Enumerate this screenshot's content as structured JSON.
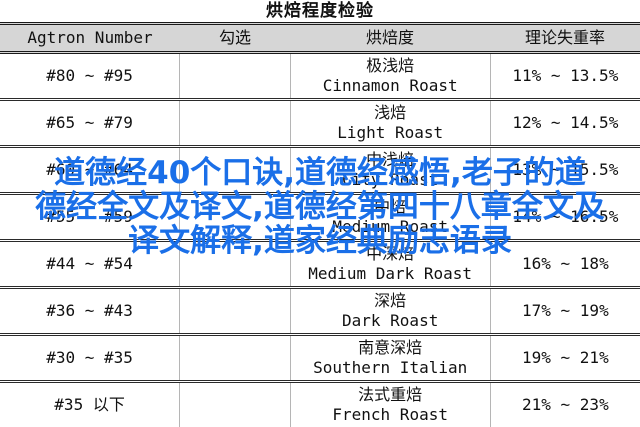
{
  "page": {
    "title": "烘焙程度检验"
  },
  "table": {
    "columns": [
      "Agtron Number",
      "勾选",
      "烘焙度",
      "理论失重率"
    ],
    "rows": [
      {
        "agtron": "#80 ~ #95",
        "check": "",
        "roast_cn": "极浅焙",
        "roast_en": "Cinnamon Roast",
        "loss": "11% ~ 13.5%"
      },
      {
        "agtron": "#65 ~ #79",
        "check": "",
        "roast_cn": "浅焙",
        "roast_en": "Light Roast",
        "loss": "12% ~ 14.5%"
      },
      {
        "agtron": "#60 ~ #64",
        "check": "",
        "roast_cn": "中浅焙",
        "roast_en": "City Roast",
        "loss": "13% ~ 15.5%"
      },
      {
        "agtron": "#55 ~ #59",
        "check": "",
        "roast_cn": "中焙",
        "roast_en": "Medium Roast",
        "loss": "14% ~ 16.5%"
      },
      {
        "agtron": "#44 ~ #54",
        "check": "",
        "roast_cn": "中深焙",
        "roast_en": "Medium Dark Roast",
        "loss": "16% ~ 18%"
      },
      {
        "agtron": "#36 ~ #43",
        "check": "",
        "roast_cn": "深焙",
        "roast_en": "Dark Roast",
        "loss": "17% ~ 19%"
      },
      {
        "agtron": "#30 ~ #35",
        "check": "",
        "roast_cn": "南意深焙",
        "roast_en": "Southern Italian",
        "loss": "19% ~ 21%"
      },
      {
        "agtron": "#35 以下",
        "check": "",
        "roast_cn": "法式重焙",
        "roast_en": "French Roast",
        "loss": "21% ~ 23%"
      }
    ]
  },
  "overlay": {
    "color": "#1a6fe8",
    "lines": [
      "道德经40个口诀,道德经感悟,老子的道",
      "德经全文及译文,道德经第四十八章全文及",
      "译文解释,道家经典励志语录"
    ]
  }
}
